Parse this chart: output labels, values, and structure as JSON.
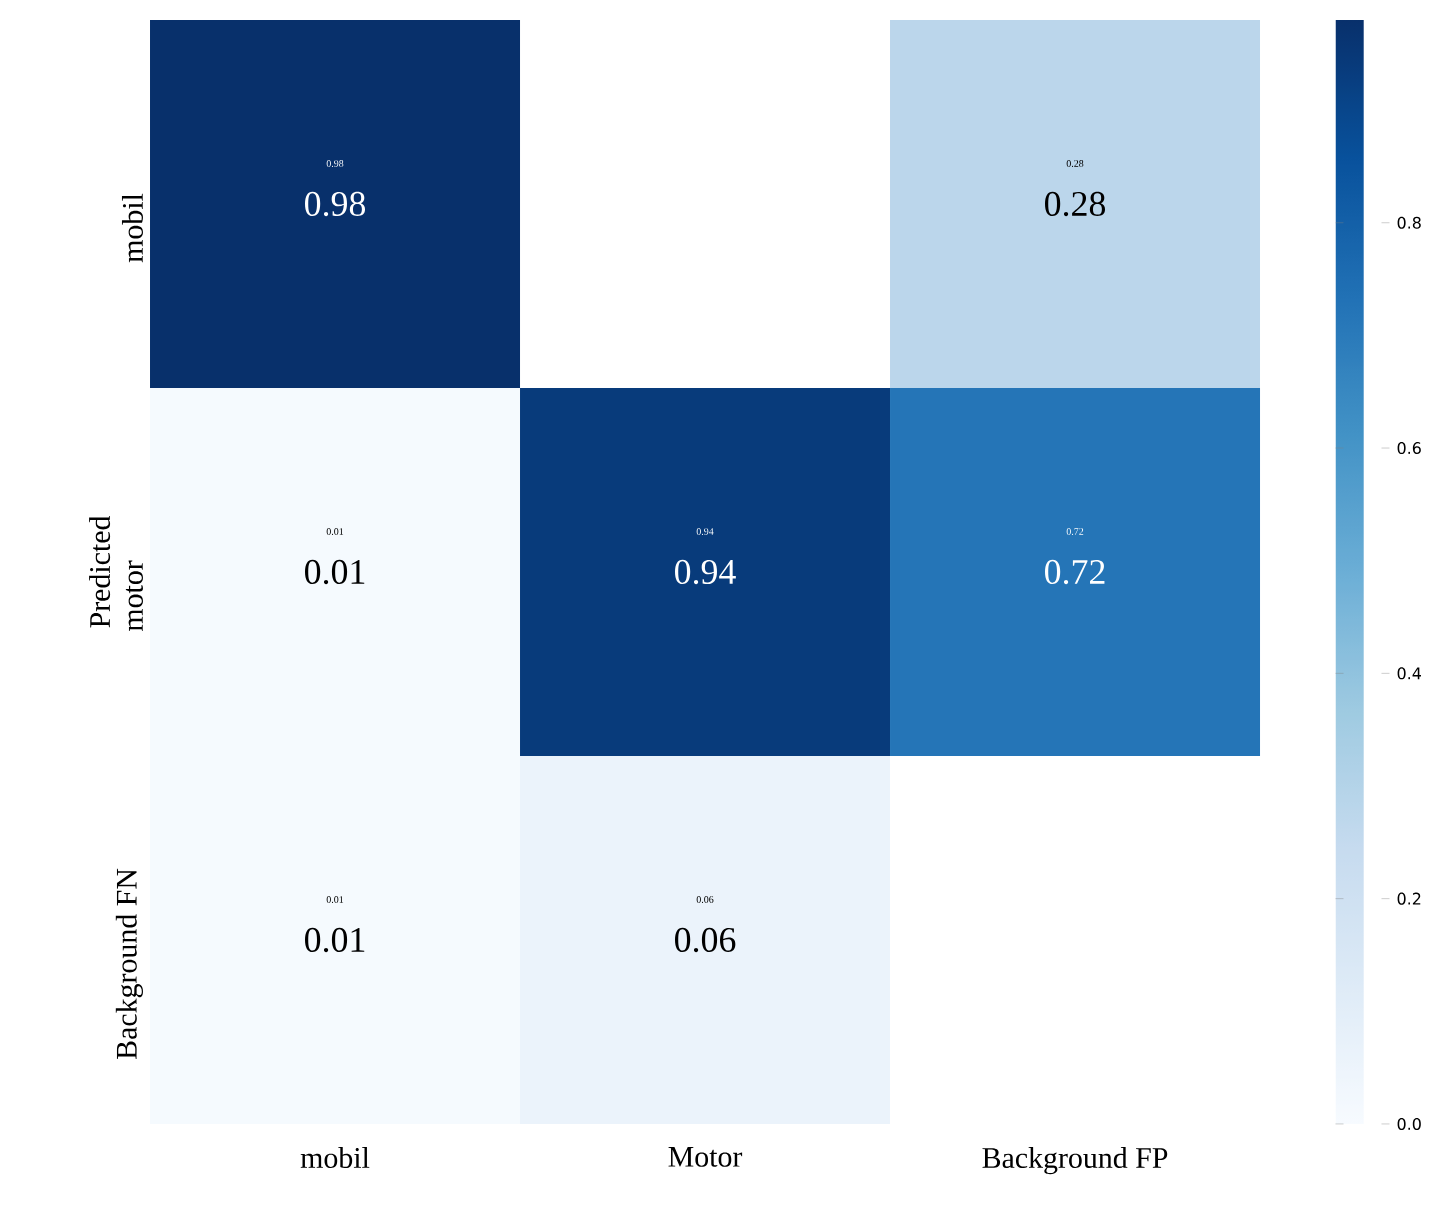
{
  "chart_data": {
    "type": "heatmap",
    "ylabel": "Predicted",
    "categories": [
      "mobil",
      "Motor",
      "Background FP"
    ],
    "y_categories": [
      "mobil",
      "motor",
      "Background FN"
    ],
    "cells": [
      [
        0.98,
        null,
        0.28
      ],
      [
        0.01,
        0.94,
        0.72
      ],
      [
        0.01,
        0.06,
        null
      ]
    ],
    "data_labels": true,
    "annotations": [
      "0.98",
      "0.28",
      "0.01",
      "0.94",
      "0.72",
      "0.01",
      "0.06"
    ],
    "cell_labels": [
      [
        "0.98",
        null,
        "0.28"
      ],
      [
        "0.01",
        "0.94",
        "0.72"
      ],
      [
        "0.01",
        "0.06",
        null
      ]
    ],
    "clim": [
      0,
      0.98
    ],
    "cticks": [
      {
        "value": 0,
        "label": "0.0"
      },
      {
        "value": 0.2,
        "label": "0.2"
      },
      {
        "value": 0.4,
        "label": "0.4"
      },
      {
        "value": 0.6,
        "label": "0.6"
      },
      {
        "value": 0.8,
        "label": "0.8"
      }
    ]
  }
}
